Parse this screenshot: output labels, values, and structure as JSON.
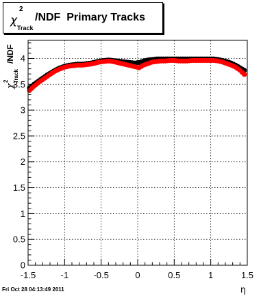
{
  "header": {
    "title_chi": "χ",
    "title_sup": "2",
    "title_sub": "Track",
    "title_rest": "/NDF  Primary Tracks"
  },
  "footer": {
    "timestamp": "Fri Oct 28 04:13:49 2011"
  },
  "chart_data": {
    "type": "scatter",
    "xlabel": "η",
    "ylabel_parts": {
      "chi": "χ",
      "sup": "2",
      "sub": "Track",
      "rest": "/NDF"
    },
    "xlim": [
      -1.5,
      1.5
    ],
    "ylim": [
      0,
      4.35
    ],
    "x_ticks": [
      -1.5,
      -1,
      -0.5,
      0,
      0.5,
      1,
      1.5
    ],
    "x_tick_labels": [
      "-1.5",
      "-1",
      "-0.5",
      "0",
      "0.5",
      "1",
      "1.5"
    ],
    "y_ticks": [
      0,
      0.5,
      1,
      1.5,
      2,
      2.5,
      3,
      3.5,
      4
    ],
    "y_tick_labels": [
      "0",
      "0.5",
      "1",
      "1.5",
      "2",
      "2.5",
      "3",
      "3.5",
      "4"
    ],
    "grid": true,
    "series": [
      {
        "color": "#000000",
        "x": [
          -1.48,
          -1.42,
          -1.36,
          -1.3,
          -1.24,
          -1.18,
          -1.12,
          -1.06,
          -1.0,
          -0.94,
          -0.88,
          -0.82,
          -0.76,
          -0.7,
          -0.64,
          -0.58,
          -0.52,
          -0.46,
          -0.4,
          -0.34,
          -0.28,
          -0.22,
          -0.16,
          -0.1,
          -0.04,
          0.02,
          0.08,
          0.14,
          0.2,
          0.26,
          0.32,
          0.38,
          0.44,
          0.5,
          0.56,
          0.62,
          0.68,
          0.74,
          0.8,
          0.86,
          0.92,
          0.98,
          1.04,
          1.1,
          1.16,
          1.22,
          1.28,
          1.34,
          1.4,
          1.46
        ],
        "y": [
          3.43,
          3.5,
          3.56,
          3.62,
          3.68,
          3.73,
          3.78,
          3.82,
          3.85,
          3.87,
          3.88,
          3.89,
          3.89,
          3.9,
          3.91,
          3.93,
          3.95,
          3.96,
          3.97,
          3.96,
          3.95,
          3.94,
          3.93,
          3.92,
          3.91,
          3.92,
          3.95,
          3.97,
          3.98,
          3.99,
          3.99,
          3.99,
          3.99,
          3.99,
          3.99,
          3.99,
          3.99,
          3.99,
          3.99,
          3.99,
          3.99,
          3.99,
          3.99,
          3.98,
          3.96,
          3.94,
          3.91,
          3.87,
          3.82,
          3.77
        ]
      },
      {
        "color": "#ff0000",
        "x": [
          -1.48,
          -1.42,
          -1.36,
          -1.3,
          -1.24,
          -1.18,
          -1.12,
          -1.06,
          -1.0,
          -0.94,
          -0.88,
          -0.82,
          -0.76,
          -0.7,
          -0.64,
          -0.58,
          -0.52,
          -0.46,
          -0.4,
          -0.34,
          -0.28,
          -0.22,
          -0.16,
          -0.1,
          -0.04,
          0.02,
          0.08,
          0.14,
          0.2,
          0.26,
          0.32,
          0.38,
          0.44,
          0.5,
          0.56,
          0.62,
          0.68,
          0.74,
          0.8,
          0.86,
          0.92,
          0.98,
          1.04,
          1.1,
          1.16,
          1.22,
          1.28,
          1.34,
          1.4,
          1.46
        ],
        "y": [
          3.38,
          3.46,
          3.53,
          3.59,
          3.65,
          3.71,
          3.76,
          3.8,
          3.83,
          3.85,
          3.86,
          3.87,
          3.87,
          3.88,
          3.89,
          3.91,
          3.93,
          3.94,
          3.95,
          3.94,
          3.92,
          3.9,
          3.88,
          3.86,
          3.84,
          3.82,
          3.87,
          3.9,
          3.93,
          3.94,
          3.95,
          3.95,
          3.96,
          3.96,
          3.95,
          3.95,
          3.95,
          3.96,
          3.96,
          3.96,
          3.96,
          3.96,
          3.96,
          3.95,
          3.93,
          3.9,
          3.87,
          3.83,
          3.77,
          3.69
        ]
      }
    ]
  }
}
